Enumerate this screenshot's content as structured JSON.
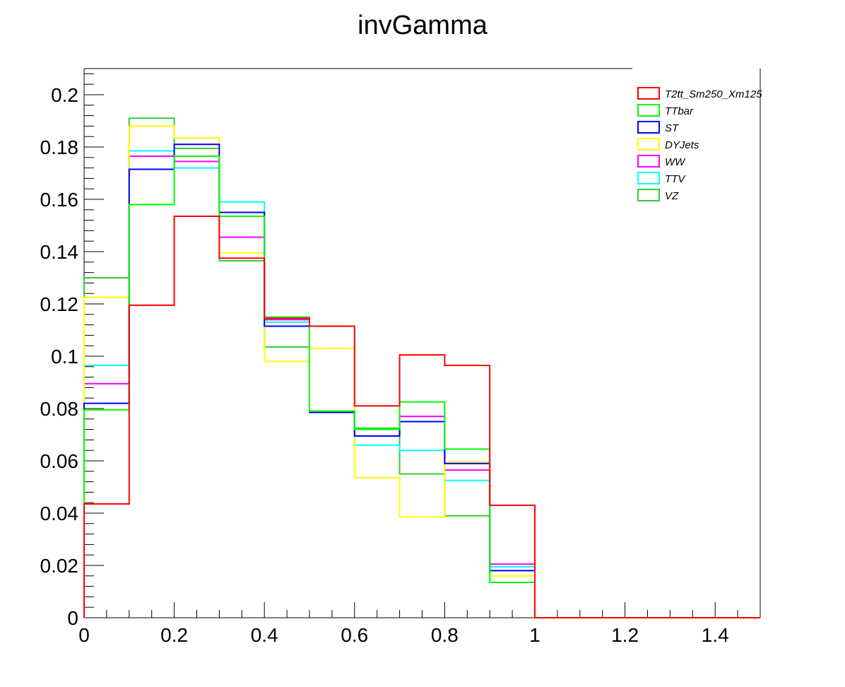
{
  "chart_data": {
    "type": "line",
    "title": "invGamma",
    "xlabel": "",
    "ylabel": "",
    "xlim": [
      0,
      1.5
    ],
    "ylim": [
      0,
      0.21
    ],
    "x_ticks": [
      "0",
      "0.2",
      "0.4",
      "0.6",
      "0.8",
      "1",
      "1.2",
      "1.4"
    ],
    "y_ticks": [
      "0",
      "0.02",
      "0.04",
      "0.06",
      "0.08",
      "0.1",
      "0.12",
      "0.14",
      "0.16",
      "0.18",
      "0.2"
    ],
    "bin_edges": [
      0,
      0.1,
      0.2,
      0.3,
      0.4,
      0.5,
      0.6,
      0.7,
      0.8,
      0.9,
      1.0,
      1.1,
      1.2,
      1.3,
      1.4,
      1.5
    ],
    "legend_position": "top-right",
    "grid": false,
    "series": [
      {
        "name": "T2tt_Sm250_Xm125",
        "color": "#ff0000",
        "values": [
          0.0435,
          0.1195,
          0.1535,
          0.1375,
          0.1145,
          0.1115,
          0.081,
          0.1005,
          0.0965,
          0.043,
          0,
          0,
          0,
          0,
          0
        ]
      },
      {
        "name": "TTbar",
        "color": "#00ff00",
        "values": [
          0.0795,
          0.158,
          0.1765,
          0.1535,
          0.115,
          0.079,
          0.072,
          0.0825,
          0.0645,
          0.0135,
          0,
          0,
          0,
          0,
          0
        ]
      },
      {
        "name": "ST",
        "color": "#0000ff",
        "values": [
          0.082,
          0.1715,
          0.181,
          0.155,
          0.1115,
          0.0785,
          0.0695,
          0.075,
          0.059,
          0.018,
          0,
          0,
          0,
          0,
          0
        ]
      },
      {
        "name": "DYJets",
        "color": "#ffff00",
        "values": [
          0.1225,
          0.188,
          0.1835,
          0.1395,
          0.098,
          0.103,
          0.0535,
          0.0385,
          0.0595,
          0.016,
          0,
          0,
          0,
          0,
          0
        ]
      },
      {
        "name": "WW",
        "color": "#ff00ff",
        "values": [
          0.0895,
          0.1765,
          0.1745,
          0.1455,
          0.114,
          0.079,
          0.0695,
          0.077,
          0.0565,
          0.0205,
          0,
          0,
          0,
          0,
          0
        ]
      },
      {
        "name": "TTV",
        "color": "#00ffff",
        "values": [
          0.0965,
          0.1785,
          0.172,
          0.159,
          0.113,
          0.0785,
          0.066,
          0.064,
          0.0525,
          0.0195,
          0,
          0,
          0,
          0,
          0
        ]
      },
      {
        "name": "VZ",
        "color": "#33cc33",
        "values": [
          0.13,
          0.191,
          0.1795,
          0.1365,
          0.1035,
          0.079,
          0.0725,
          0.055,
          0.039,
          0.0135,
          0,
          0,
          0,
          0,
          0
        ]
      }
    ]
  }
}
